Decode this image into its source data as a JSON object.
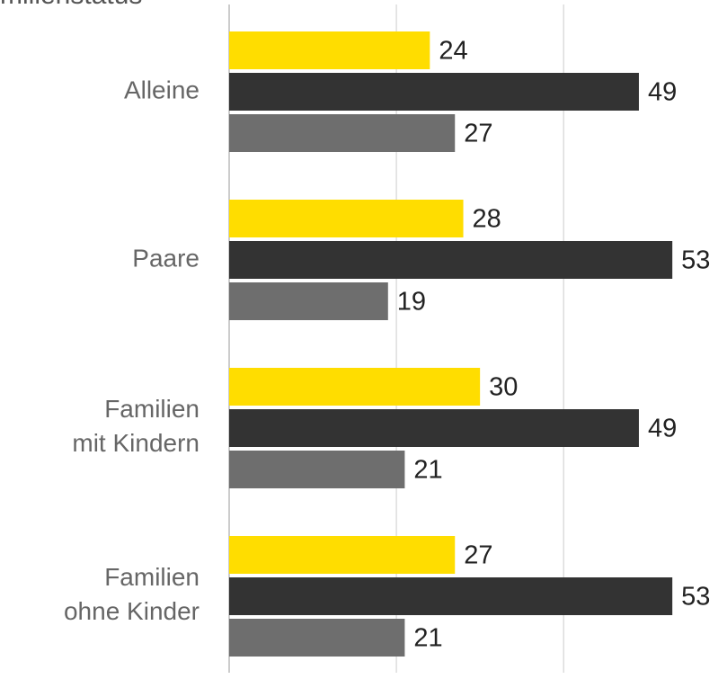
{
  "chart_data": {
    "type": "bar",
    "orientation": "horizontal",
    "title": "milienstatus",
    "categories": [
      "Alleine",
      "Paare",
      "Familien\nmit Kindern",
      "Familien\nohne Kinder"
    ],
    "series": [
      {
        "color": "#ffdd00",
        "values": [
          24,
          28,
          30,
          27
        ]
      },
      {
        "color": "#333333",
        "values": [
          49,
          53,
          49,
          53
        ]
      },
      {
        "color": "#6e6e6e",
        "values": [
          27,
          19,
          21,
          21
        ]
      }
    ],
    "xlim": [
      0,
      59
    ],
    "xticks": [
      0,
      20,
      40
    ],
    "grid": true
  }
}
